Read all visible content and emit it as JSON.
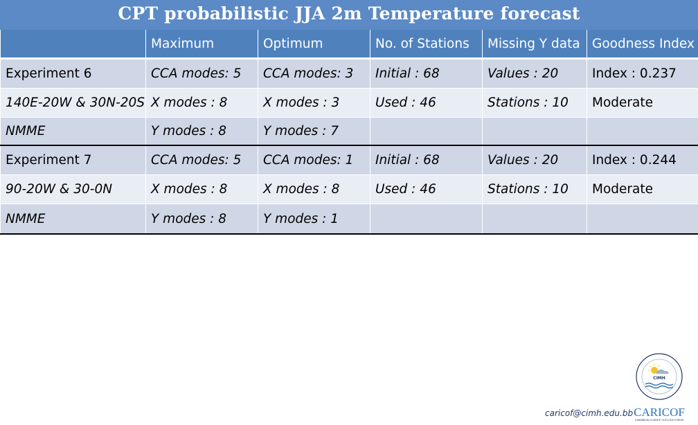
{
  "title": "CPT probabilistic JJA 2m Temperature forecast",
  "headers": [
    "",
    "Maximum",
    "Optimum",
    "No. of Stations",
    "Missing Y data",
    "Goodness Index"
  ],
  "rows": [
    [
      "Experiment 6",
      "CCA modes: 5",
      "CCA modes: 3",
      "Initial : 68",
      "Values : 20",
      "Index : 0.237"
    ],
    [
      "140E-20W & 30N-20S",
      "X modes : 8",
      "X modes : 3",
      "Used : 46",
      "Stations : 10",
      "Moderate"
    ],
    [
      "NMME",
      "Y modes : 8",
      "Y modes : 7",
      "",
      "",
      ""
    ],
    [
      "Experiment 7",
      "CCA modes: 5",
      "CCA modes: 1",
      "Initial : 68",
      "Values : 20",
      "Index : 0.244"
    ],
    [
      "90-20W & 30-0N",
      "X modes : 8",
      "X modes : 8",
      "Used : 46",
      "Stations : 10",
      "Moderate"
    ],
    [
      "NMME",
      "Y modes : 8",
      "Y modes : 1",
      "",
      "",
      ""
    ]
  ],
  "footer": {
    "email": "caricof@cimh.edu.bb",
    "logo_cimh_text": "CIMH",
    "logo_caricof_text": "CARICOF",
    "logo_caricof_tagline": "CARIBBEAN CLIMATE OUTLOOK FORUM"
  },
  "colors": {
    "title_bg": "#5b8ac6",
    "header_bg": "#4f81bd",
    "row_dark": "#cfd7e6",
    "row_light": "#e9edf4"
  }
}
